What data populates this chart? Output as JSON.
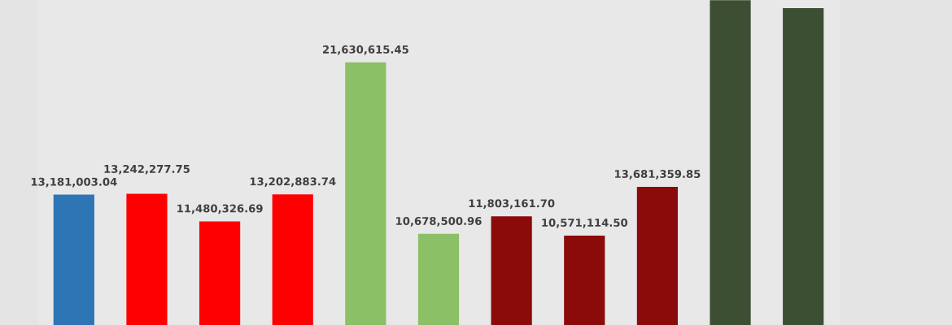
{
  "chart_data": {
    "type": "bar",
    "categories": [
      null,
      null,
      null,
      null,
      null,
      null,
      null,
      null,
      null,
      null,
      null
    ],
    "values": [
      13181003.04,
      13242277.75,
      11480326.69,
      13202883.74,
      21630615.45,
      10678500.96,
      11803161.7,
      10571114.5,
      13681359.85,
      25600000,
      25090000
    ],
    "value_labels": [
      "13,181,003.04",
      "13,242,277.75",
      "11,480,326.69",
      "13,202,883.74",
      "21,630,615.45",
      "10,678,500.96",
      "11,803,161.70",
      "10,571,114.50",
      "13,681,359.85",
      null,
      null
    ],
    "colors": [
      "#2e75b6",
      "#ff0000",
      "#ff0000",
      "#ff0000",
      "#8bc066",
      "#8bc066",
      "#8b0a0a",
      "#8b0a0a",
      "#8b0a0a",
      "#3d4f33",
      "#3d4f33"
    ],
    "ylim": [
      4860000,
      25610000
    ],
    "grid": false,
    "legend": false
  }
}
